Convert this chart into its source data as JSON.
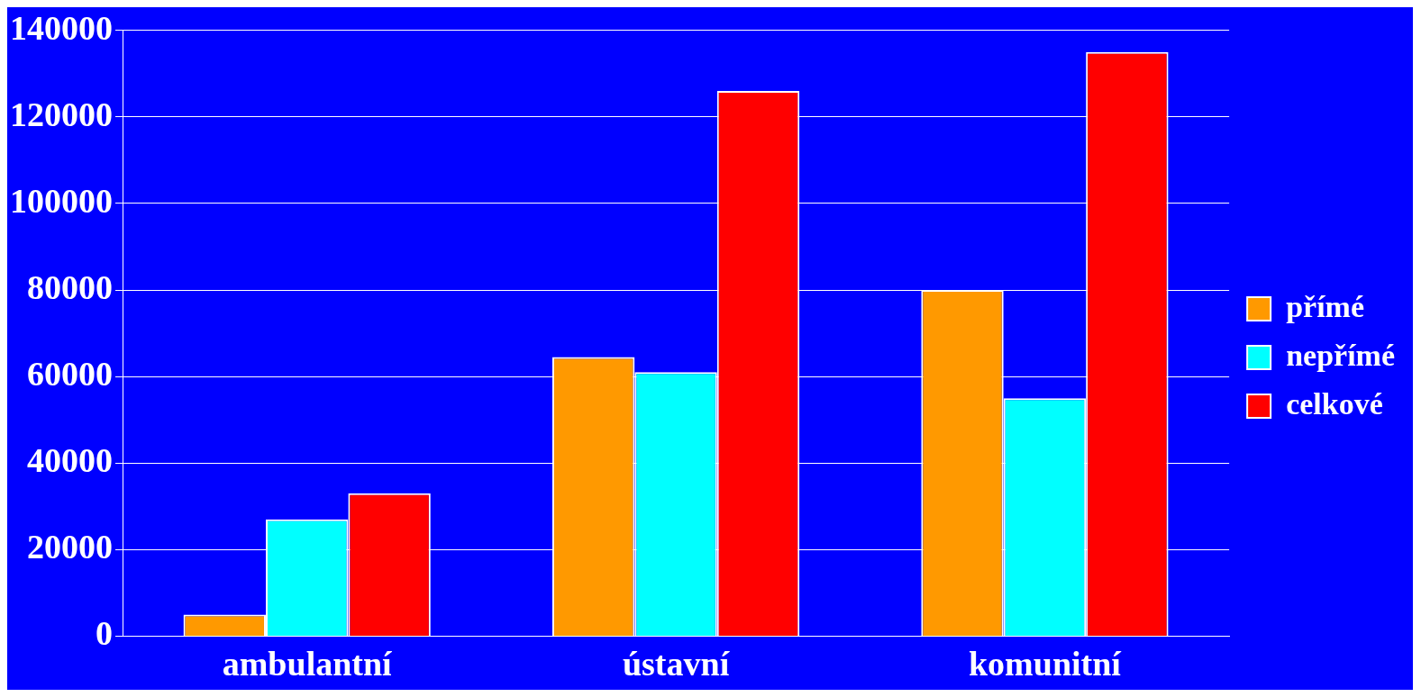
{
  "chart_data": {
    "type": "bar",
    "categories": [
      "ambulantní",
      "ústavní",
      "komunitní"
    ],
    "series": [
      {
        "name": "přímé",
        "color": "#ff9900",
        "values": [
          5000,
          64500,
          80000
        ]
      },
      {
        "name": "nepřímé",
        "color": "#00ffff",
        "values": [
          27000,
          61000,
          55000
        ]
      },
      {
        "name": "celkové",
        "color": "#ff0000",
        "values": [
          33000,
          126000,
          135000
        ]
      }
    ],
    "ylim": [
      0,
      140000
    ],
    "yticks": [
      0,
      20000,
      40000,
      60000,
      80000,
      100000,
      120000,
      140000
    ],
    "grid": "y",
    "legend": "right"
  }
}
